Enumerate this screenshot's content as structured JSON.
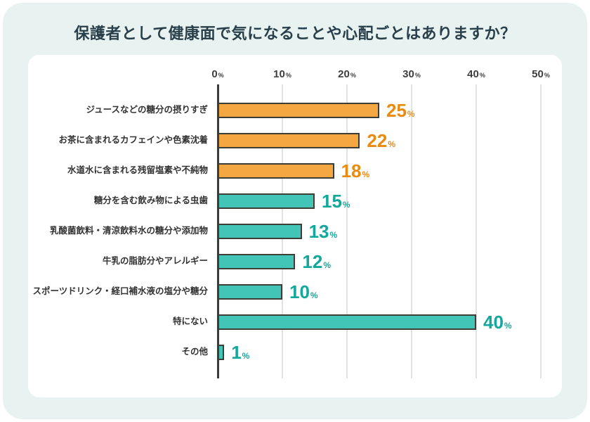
{
  "title": "保護者として健康面で気になることや心配ごとはありますか？",
  "chart_data": {
    "type": "bar",
    "orientation": "horizontal",
    "title": "保護者として健康面で気になることや心配ごとはありますか？",
    "unit": "%",
    "xlim": [
      0,
      50
    ],
    "x_ticks": [
      "0",
      "10",
      "20",
      "30",
      "40",
      "50"
    ],
    "tick_suffix": "%",
    "grid": true,
    "legend": "none",
    "categories": [
      "ジュースなどの糖分の摂りすぎ",
      "お茶に含まれるカフェインや色素沈着",
      "水道水に含まれる残留塩素や不純物",
      "糖分を含む飲み物による虫歯",
      "乳酸菌飲料・清涼飲料水の糖分や添加物",
      "牛乳の脂肪分やアレルギー",
      "スポーツドリンク・経口補水液の塩分や糖分",
      "特にない",
      "その他"
    ],
    "values": [
      25,
      22,
      18,
      15,
      13,
      12,
      10,
      40,
      1
    ],
    "bar_color_groups": [
      "orange",
      "orange",
      "orange",
      "teal",
      "teal",
      "teal",
      "teal",
      "teal",
      "teal"
    ]
  },
  "colors": {
    "panel_bg": "#E8F3F1",
    "card_bg": "#FFFFFF",
    "title_text": "#293F4A",
    "label_text": "#333333",
    "tick_text": "#3E3E3E",
    "gridline": "#DFE4E3",
    "axis_line": "#3B3B3B",
    "bar_border": "#3E3E39",
    "orange_fill": "#F5A841",
    "orange_text": "#EA8A0E",
    "teal_fill": "#42C5B6",
    "teal_text": "#13A89B"
  }
}
